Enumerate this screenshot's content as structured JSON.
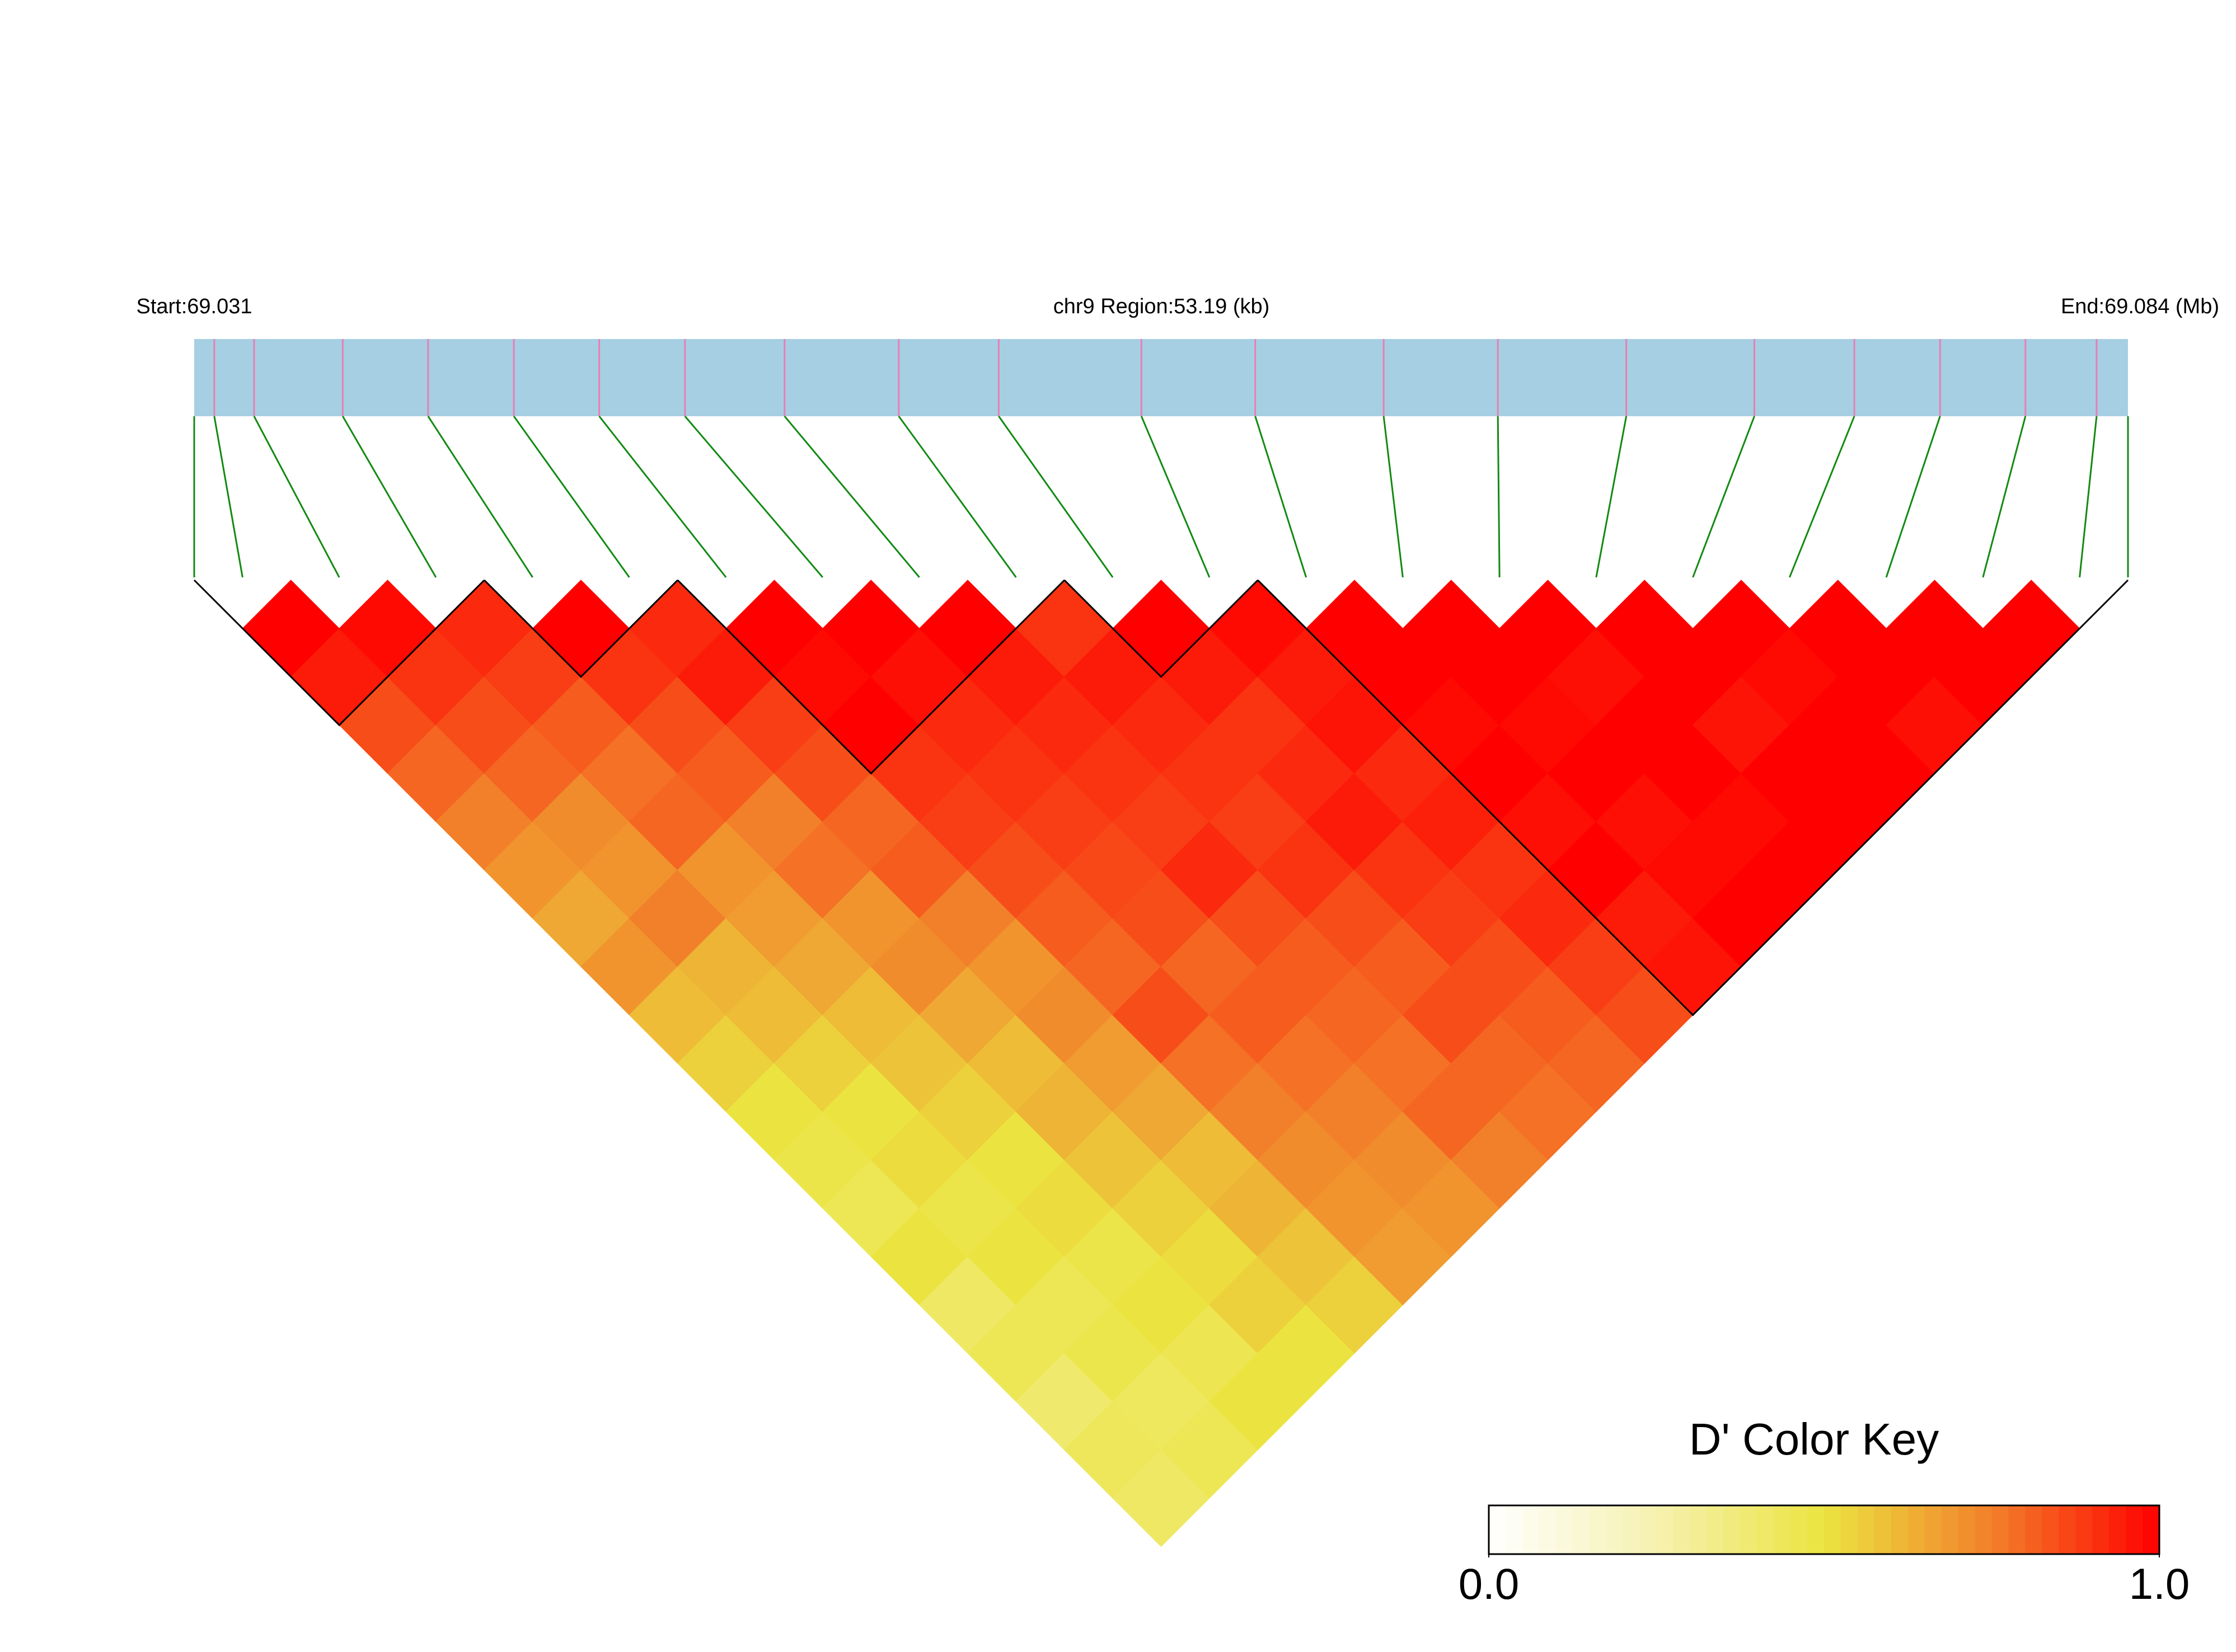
{
  "chart_data": {
    "type": "ld_heatmap",
    "start_label": "Start:69.031",
    "region_label": "chr9 Region:53.19 (kb)",
    "end_label": "End:69.084 (Mb)",
    "xlim": [
      69.031,
      69.084
    ],
    "positions": [
      69.03155,
      69.03264,
      69.03507,
      69.03741,
      69.03976,
      69.0421,
      69.04445,
      69.04718,
      69.05031,
      69.05305,
      69.05696,
      69.06008,
      69.0636,
      69.06673,
      69.07025,
      69.07376,
      69.0765,
      69.07885,
      69.08119,
      69.08314
    ],
    "ld": [
      [
        1,
        0.95,
        0.85,
        0.8,
        0.75,
        0.7,
        0.65,
        0.7,
        0.6,
        0.55,
        0.5,
        0.48,
        0.45,
        0.5,
        0.42,
        0.45,
        0.4,
        0.44,
        0.42
      ],
      [
        0.98,
        0.9,
        0.85,
        0.8,
        0.72,
        0.7,
        0.75,
        0.62,
        0.6,
        0.55,
        0.5,
        0.52,
        0.48,
        0.5,
        0.45,
        0.47,
        0.43,
        0.45
      ],
      [
        0.92,
        0.88,
        0.82,
        0.78,
        0.8,
        0.7,
        0.68,
        0.65,
        0.6,
        0.58,
        0.55,
        0.5,
        0.52,
        0.48,
        0.5,
        0.46,
        0.5
      ],
      [
        1,
        0.9,
        0.85,
        0.82,
        0.75,
        0.78,
        0.7,
        0.72,
        0.65,
        0.6,
        0.62,
        0.58,
        0.55,
        0.52,
        0.55,
        0.5
      ],
      [
        0.92,
        0.95,
        0.88,
        0.85,
        0.8,
        0.82,
        0.75,
        0.7,
        0.72,
        0.68,
        0.65,
        0.6,
        0.62,
        0.58,
        0.55
      ],
      [
        1,
        0.98,
        1,
        0.9,
        0.88,
        0.85,
        0.82,
        0.8,
        0.85,
        0.78,
        0.75,
        0.72,
        0.7,
        0.68
      ],
      [
        1,
        0.97,
        0.92,
        0.9,
        0.88,
        0.86,
        0.85,
        0.8,
        0.82,
        0.78,
        0.75,
        0.72,
        0.7
      ],
      [
        1,
        0.95,
        0.92,
        0.9,
        0.88,
        0.92,
        0.85,
        0.82,
        0.8,
        0.78,
        0.8,
        0.75
      ],
      [
        0.9,
        0.95,
        0.92,
        0.9,
        0.88,
        0.9,
        0.85,
        0.82,
        0.85,
        0.8,
        0.78
      ],
      [
        1,
        0.95,
        0.9,
        0.92,
        0.95,
        0.9,
        0.88,
        0.85,
        0.82,
        0.8
      ],
      [
        0.98,
        0.95,
        0.96,
        0.92,
        0.94,
        0.9,
        0.92,
        0.88,
        0.85
      ],
      [
        1,
        1,
        0.98,
        1,
        0.97,
        1,
        0.95,
        0.96
      ],
      [
        1,
        1,
        0.98,
        1,
        0.97,
        0.98,
        1
      ],
      [
        1,
        0.97,
        1,
        1,
        0.98,
        1
      ],
      [
        1,
        1,
        0.96,
        1,
        1
      ],
      [
        1,
        0.98,
        1,
        1
      ],
      [
        1,
        1,
        0.97
      ],
      [
        1,
        1
      ],
      [
        1
      ]
    ],
    "blocks": [
      [
        0,
        2
      ],
      [
        3,
        4
      ],
      [
        5,
        8
      ],
      [
        9,
        10
      ],
      [
        11,
        19
      ]
    ],
    "bar_color": "#a6cfe3",
    "tick_color": "#e77fb4",
    "link_color": "#128a12",
    "colors": [
      "#ffffff",
      "#f6f1b0",
      "#ebe440",
      "#f2802a",
      "#ff0000"
    ],
    "key_title": "D' Color Key",
    "key_ticks": [
      {
        "value": 0,
        "label": "0.0"
      },
      {
        "value": 1,
        "label": "1.0"
      }
    ]
  }
}
